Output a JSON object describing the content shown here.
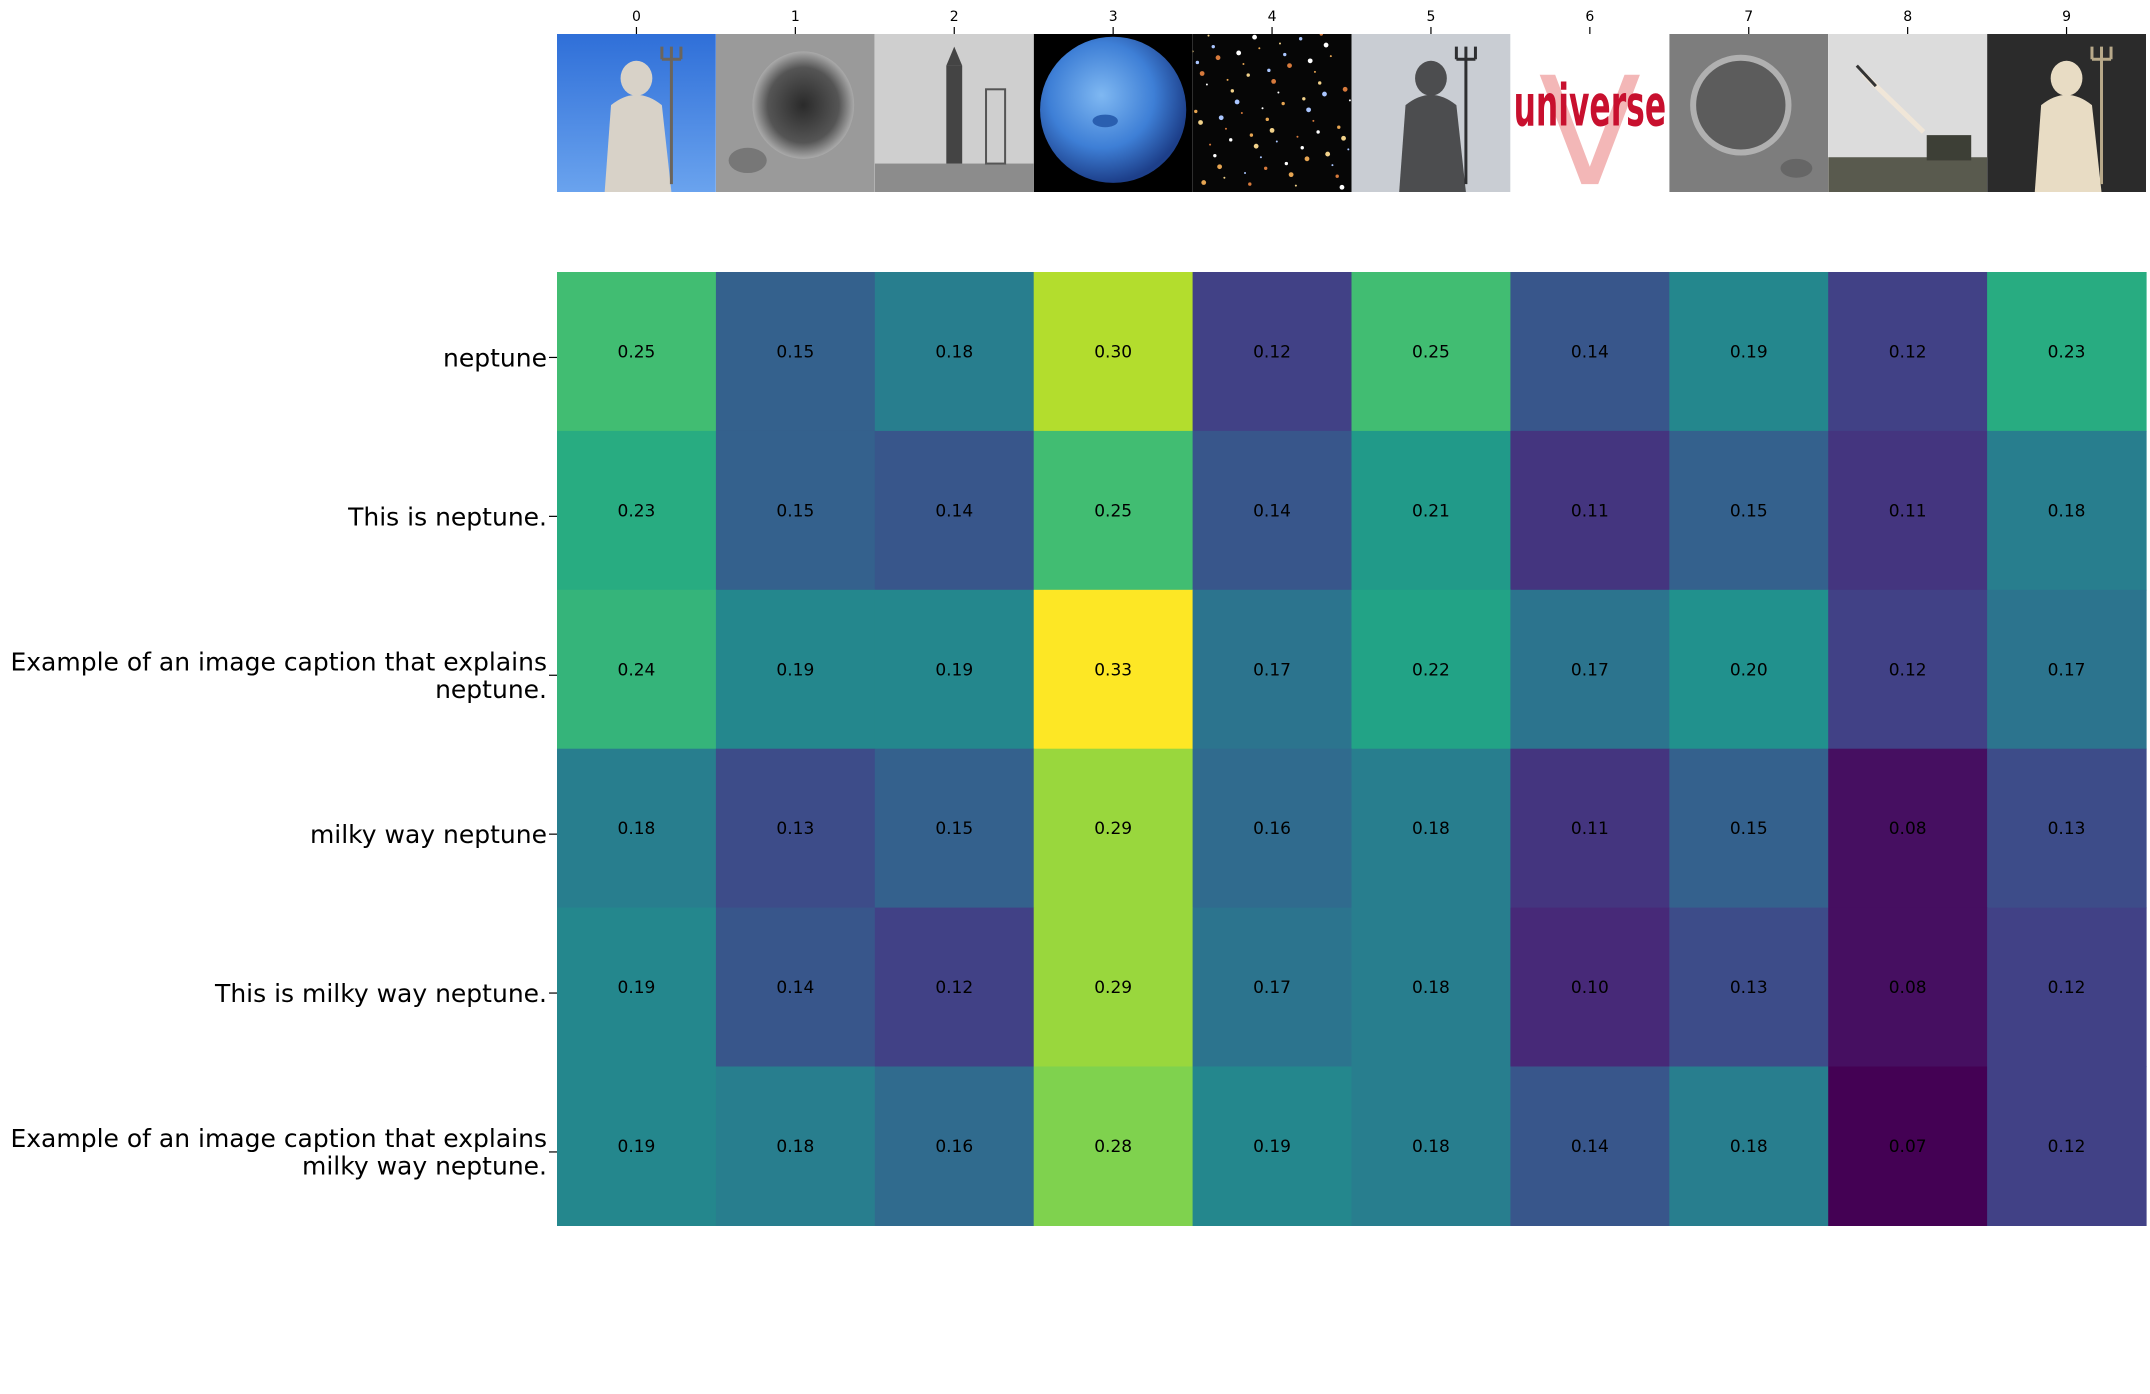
{
  "chart_data": {
    "type": "heatmap",
    "title": "",
    "xlabel": "",
    "ylabel": "",
    "x_tick_labels": [
      "0",
      "1",
      "2",
      "3",
      "4",
      "5",
      "6",
      "7",
      "8",
      "9"
    ],
    "image_thumbnails": [
      {
        "index": 0,
        "icon": "neptune-statue-blue-sky-photo"
      },
      {
        "index": 1,
        "icon": "moon-crater-photo"
      },
      {
        "index": 2,
        "icon": "rocket-launch-pad-photo"
      },
      {
        "index": 3,
        "icon": "planet-neptune-photo"
      },
      {
        "index": 4,
        "icon": "deep-field-galaxies-photo"
      },
      {
        "index": 5,
        "icon": "neptune-statue-fountain-photo"
      },
      {
        "index": 6,
        "icon": "universe-logo-text"
      },
      {
        "index": 7,
        "icon": "crater-surface-photo"
      },
      {
        "index": 8,
        "icon": "missile-launch-photo"
      },
      {
        "index": 9,
        "icon": "neptune-marble-sculpture-photo"
      }
    ],
    "logo_texts": {
      "thumbnail_6": "universe"
    },
    "rows": [
      [
        "neptune"
      ],
      [
        "This is neptune."
      ],
      [
        "Example of an image caption that explains",
        "neptune."
      ],
      [
        "milky way neptune"
      ],
      [
        "This is milky way neptune."
      ],
      [
        "Example of an image caption that explains",
        "milky way neptune."
      ]
    ],
    "values": [
      [
        0.25,
        0.15,
        0.18,
        0.3,
        0.12,
        0.25,
        0.14,
        0.19,
        0.12,
        0.23
      ],
      [
        0.23,
        0.15,
        0.14,
        0.25,
        0.14,
        0.21,
        0.11,
        0.15,
        0.11,
        0.18
      ],
      [
        0.24,
        0.19,
        0.19,
        0.33,
        0.17,
        0.22,
        0.17,
        0.2,
        0.12,
        0.17
      ],
      [
        0.18,
        0.13,
        0.15,
        0.29,
        0.16,
        0.18,
        0.11,
        0.15,
        0.08,
        0.13
      ],
      [
        0.19,
        0.14,
        0.12,
        0.29,
        0.17,
        0.18,
        0.1,
        0.13,
        0.08,
        0.12
      ],
      [
        0.19,
        0.18,
        0.16,
        0.28,
        0.19,
        0.18,
        0.14,
        0.18,
        0.07,
        0.12
      ]
    ],
    "colormap": "viridis",
    "color_range": [
      0.07,
      0.33
    ],
    "grid": false,
    "legend": "none"
  }
}
